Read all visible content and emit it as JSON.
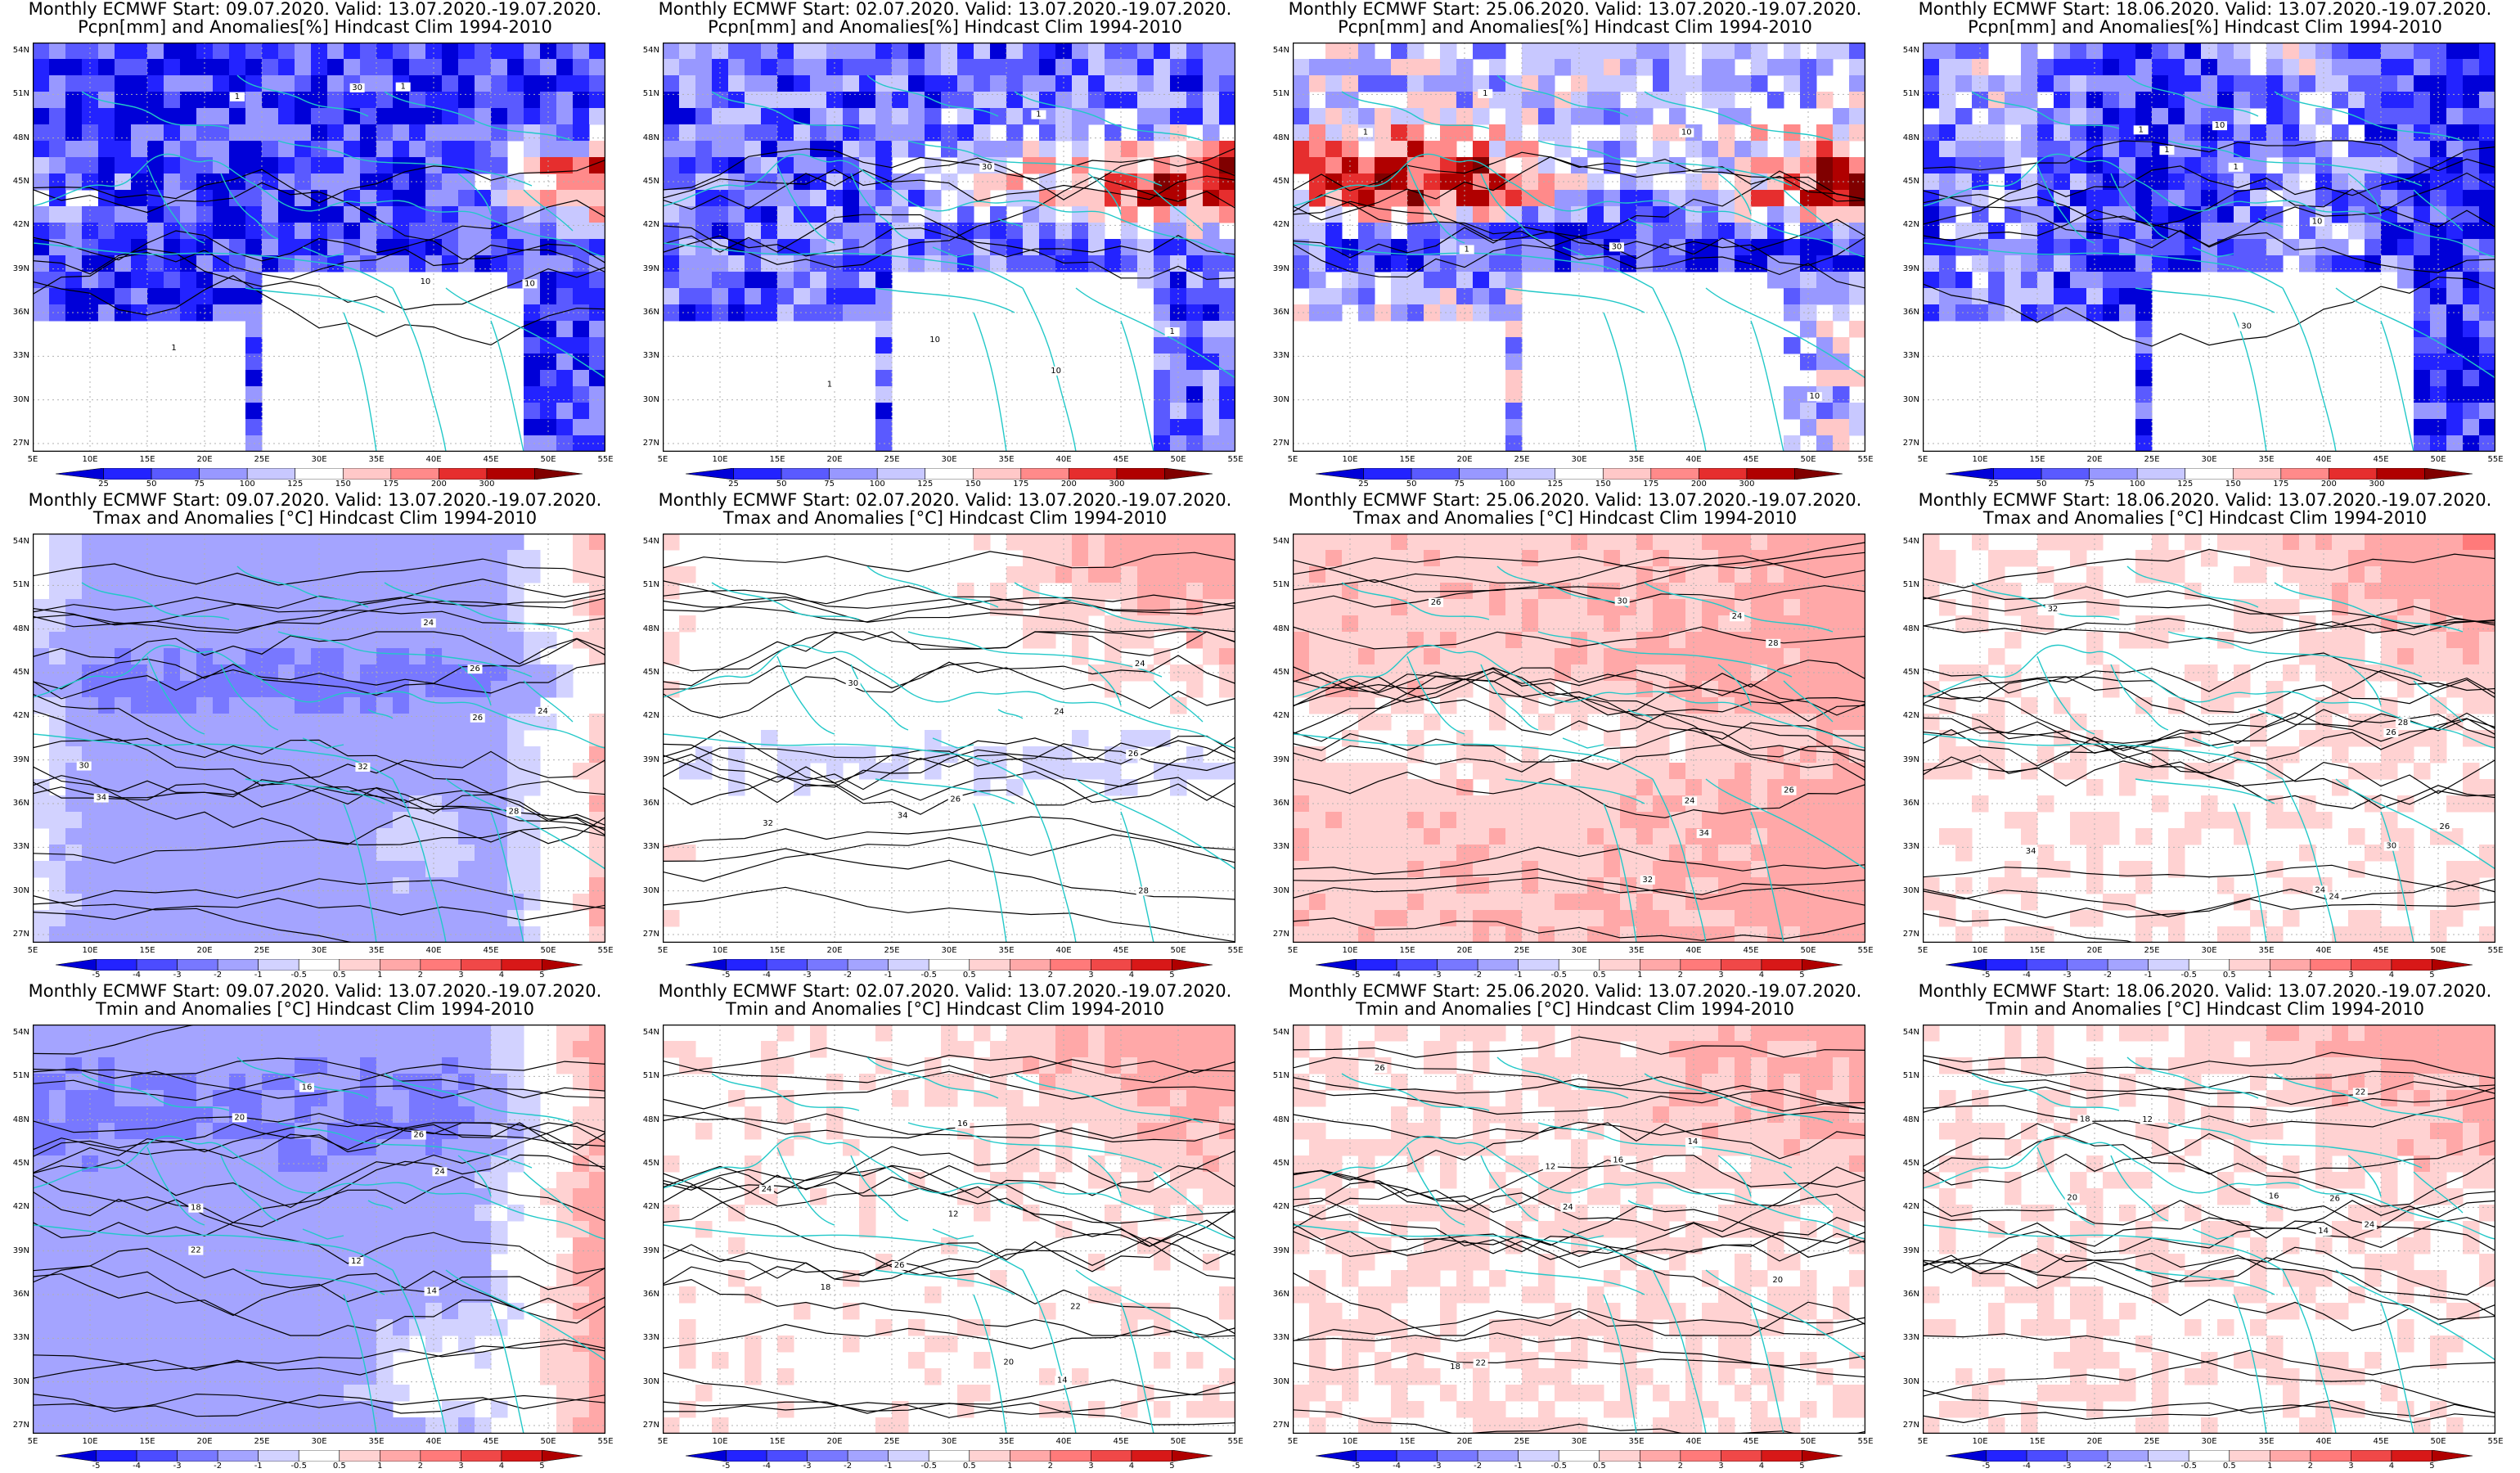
{
  "rows": [
    {
      "kind": "pcpn",
      "title2": "Pcpn[mm] and Anomalies[%] Hindcast Clim 1994-2010",
      "colorbar": {
        "labels": [
          "25",
          "50",
          "75",
          "100",
          "125",
          "150",
          "175",
          "200",
          "300"
        ],
        "colors": [
          "#0000d8",
          "#2323ff",
          "#5a5aff",
          "#9898ff",
          "#c8c8ff",
          "#ffffff",
          "#ffc8c8",
          "#ff8a8a",
          "#e62e2e",
          "#b00000",
          "#800000"
        ]
      },
      "contour_labels": [
        "10",
        "1",
        "30",
        "1",
        "10",
        "1"
      ]
    },
    {
      "kind": "tmax",
      "title2": "Tmax and Anomalies [°C] Hindcast Clim 1994-2010",
      "colorbar": {
        "labels": [
          "-5",
          "-4",
          "-3",
          "-2",
          "-1",
          "-0.5",
          "0.5",
          "1",
          "2",
          "3",
          "4",
          "5"
        ],
        "colors": [
          "#0000d8",
          "#2323ff",
          "#4c4cff",
          "#7878ff",
          "#a4a4ff",
          "#d2d2ff",
          "#ffffff",
          "#ffd2d2",
          "#ffa8a8",
          "#ff7a7a",
          "#f04848",
          "#d81818",
          "#b00000"
        ]
      },
      "contour_labels": [
        "24",
        "26",
        "28",
        "30",
        "32",
        "34",
        "24",
        "26"
      ]
    },
    {
      "kind": "tmin",
      "title2": "Tmin and Anomalies [°C] Hindcast Clim 1994-2010",
      "colorbar": {
        "labels": [
          "-5",
          "-4",
          "-3",
          "-2",
          "-1",
          "-0.5",
          "0.5",
          "1",
          "2",
          "3",
          "4",
          "5"
        ],
        "colors": [
          "#0000d8",
          "#2323ff",
          "#4c4cff",
          "#7878ff",
          "#a4a4ff",
          "#d2d2ff",
          "#ffffff",
          "#ffd2d2",
          "#ffa8a8",
          "#ff7a7a",
          "#f04848",
          "#d81818",
          "#b00000"
        ]
      },
      "contour_labels": [
        "14",
        "16",
        "18",
        "20",
        "22",
        "24",
        "12",
        "26"
      ]
    }
  ],
  "columns": [
    {
      "title1": "Monthly ECMWF Start: 09.07.2020. Valid: 13.07.2020.-19.07.2020."
    },
    {
      "title1": "Monthly ECMWF Start: 02.07.2020. Valid: 13.07.2020.-19.07.2020."
    },
    {
      "title1": "Monthly ECMWF Start: 25.06.2020. Valid: 13.07.2020.-19.07.2020."
    },
    {
      "title1": "Monthly ECMWF Start: 18.06.2020. Valid: 13.07.2020.-19.07.2020."
    }
  ],
  "axes": {
    "lat_labels": [
      "54N",
      "51N",
      "48N",
      "45N",
      "42N",
      "39N",
      "36N",
      "33N",
      "30N",
      "27N"
    ],
    "lon_labels": [
      "5E",
      "10E",
      "15E",
      "20E",
      "25E",
      "30E",
      "35E",
      "40E",
      "45E",
      "50E",
      "55E"
    ]
  },
  "colors": {
    "coast": "#22c8c8",
    "contour": "#000000",
    "grid": "#b0b0b0"
  }
}
